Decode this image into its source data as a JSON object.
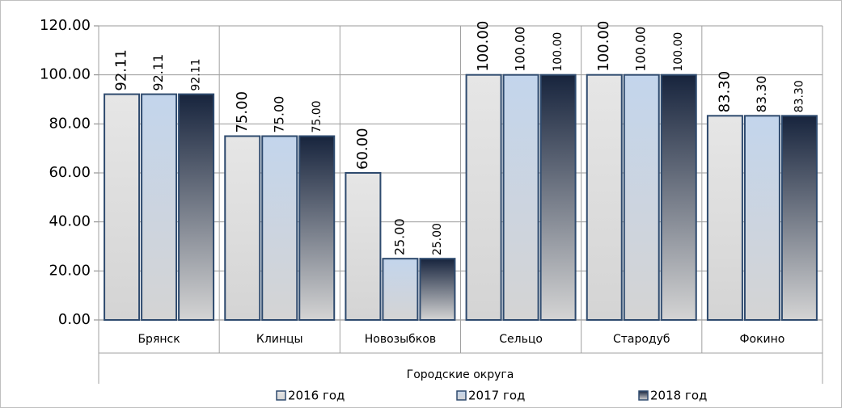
{
  "chart_data": {
    "type": "bar",
    "x_label": "Городские округа",
    "categories": [
      "Брянск",
      "Клинцы",
      "Новозыбков",
      "Сельцо",
      "Стародуб",
      "Фокино"
    ],
    "series": [
      {
        "name": "2016 год",
        "color": "#e6e6e6",
        "values": [
          92.11,
          75,
          60,
          100,
          100,
          83.3
        ],
        "value_labels": [
          "92.11",
          "75.00",
          "60.00",
          "100.00",
          "100.00",
          "83.30"
        ]
      },
      {
        "name": "2017 год",
        "color": "#c3d5ec",
        "values": [
          92.11,
          75,
          25,
          100,
          100,
          83.3
        ],
        "value_labels": [
          "92.11",
          "75.00",
          "25.00",
          "100.00",
          "100.00",
          "83.30"
        ]
      },
      {
        "name": "2018 год",
        "color": "#17243d",
        "values": [
          92.11,
          75,
          25,
          100,
          100,
          83.3
        ],
        "value_labels": [
          "92.11",
          "75.00",
          "25.00",
          "100.00",
          "100.00",
          "83.30"
        ]
      }
    ],
    "ylim": [
      0,
      120
    ],
    "yticks": [
      {
        "value": 0,
        "label": "0.00"
      },
      {
        "value": 20,
        "label": "20.00"
      },
      {
        "value": 40,
        "label": "40.00"
      },
      {
        "value": 60,
        "label": "60.00"
      },
      {
        "value": 80,
        "label": "80.00"
      },
      {
        "value": 100,
        "label": "100.00"
      },
      {
        "value": 120,
        "label": "120.00"
      }
    ],
    "grid": true
  }
}
